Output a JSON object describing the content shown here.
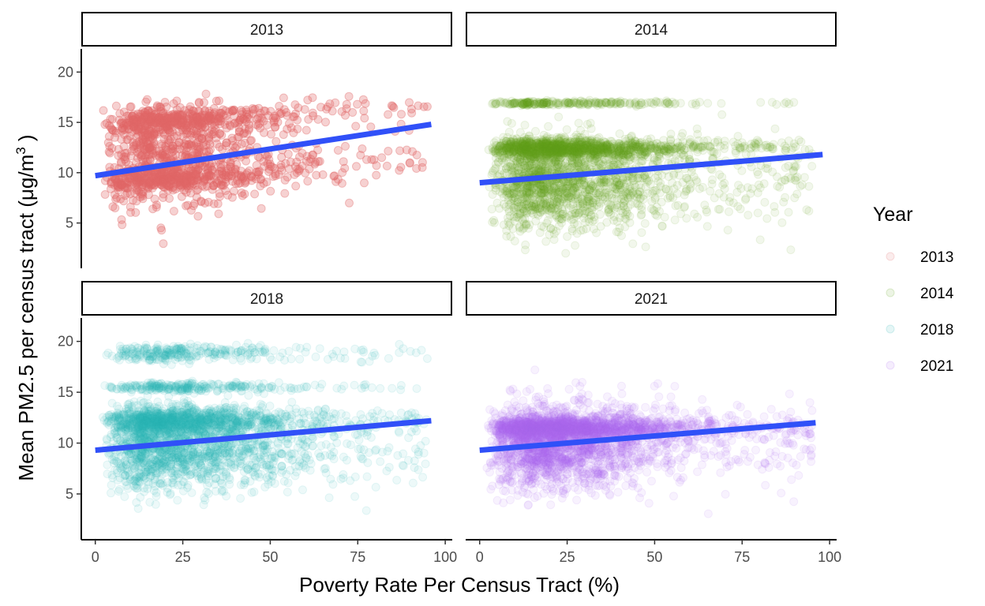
{
  "chart_data": {
    "type": "scatter",
    "layout": "facet-grid-2x2",
    "xlabel": "Poverty Rate Per Census Tract (%)",
    "ylabel": "Mean PM2.5 per census tract (μg/m",
    "ylabel_superscript": "3",
    "ylabel_suffix": " )",
    "xlim": [
      -4,
      102
    ],
    "ylim": [
      0.5,
      22.3
    ],
    "x_ticks": [
      0,
      25,
      50,
      75,
      100
    ],
    "y_ticks": [
      5,
      10,
      15,
      20
    ],
    "grid": false,
    "legend": {
      "title": "Year",
      "position": "right",
      "entries": [
        "2013",
        "2014",
        "2018",
        "2021"
      ]
    },
    "trend_line_color": "#3050F8",
    "facets": [
      {
        "label": "2013",
        "color": "#E06666",
        "point_density": "sparse",
        "trend": {
          "x": [
            0,
            96
          ],
          "y": [
            9.7,
            14.8
          ]
        }
      },
      {
        "label": "2014",
        "color": "#66A61E",
        "point_density": "dense",
        "trend": {
          "x": [
            0,
            98
          ],
          "y": [
            9.0,
            11.8
          ]
        }
      },
      {
        "label": "2018",
        "color": "#2BB5B5",
        "point_density": "dense",
        "trend": {
          "x": [
            0,
            96
          ],
          "y": [
            9.3,
            12.2
          ]
        }
      },
      {
        "label": "2021",
        "color": "#B06EF0",
        "point_density": "dense",
        "trend": {
          "x": [
            0,
            96
          ],
          "y": [
            9.3,
            12.0
          ]
        }
      }
    ]
  }
}
